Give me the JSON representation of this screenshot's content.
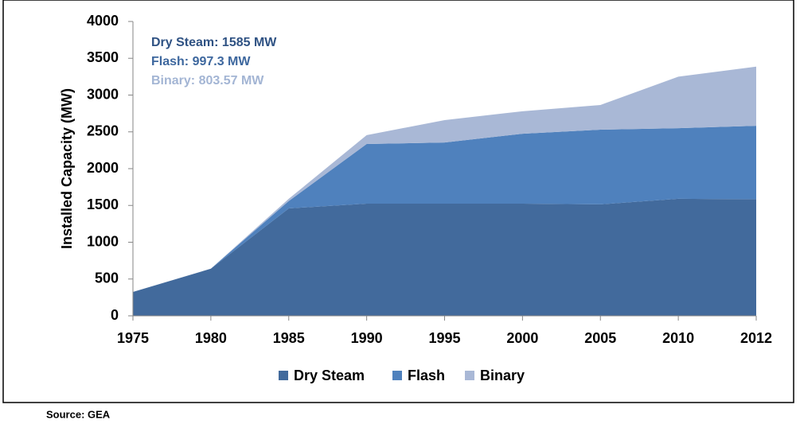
{
  "chart_data": {
    "type": "stacked-area",
    "ylabel": "Installed Capacity (MW)",
    "categories": [
      "1975",
      "1980",
      "1985",
      "1990",
      "1995",
      "2000",
      "2005",
      "2010",
      "2012"
    ],
    "series": [
      {
        "name": "Dry Steam",
        "color": "#426a9c",
        "values": [
          325,
          640,
          1460,
          1525,
          1525,
          1525,
          1515,
          1590,
          1585
        ]
      },
      {
        "name": "Flash",
        "color": "#4f81bd",
        "values": [
          0,
          0,
          100,
          810,
          830,
          950,
          1015,
          960,
          997.3
        ]
      },
      {
        "name": "Binary",
        "color": "#a9b8d6",
        "values": [
          0,
          0,
          30,
          120,
          305,
          305,
          335,
          700,
          803.57
        ]
      }
    ],
    "annotations": [
      {
        "text": "Dry Steam: 1585 MW",
        "color": "#2f5283"
      },
      {
        "text": "Flash: 997.3 MW",
        "color": "#3d679e"
      },
      {
        "text": "Binary: 803.57 MW",
        "color": "#a3b5d4"
      }
    ],
    "ylim": [
      0,
      4000
    ],
    "yticks": [
      0,
      500,
      1000,
      1500,
      2000,
      2500,
      3000,
      3500,
      4000
    ],
    "legend": "bottom",
    "source": "Source: GEA"
  }
}
